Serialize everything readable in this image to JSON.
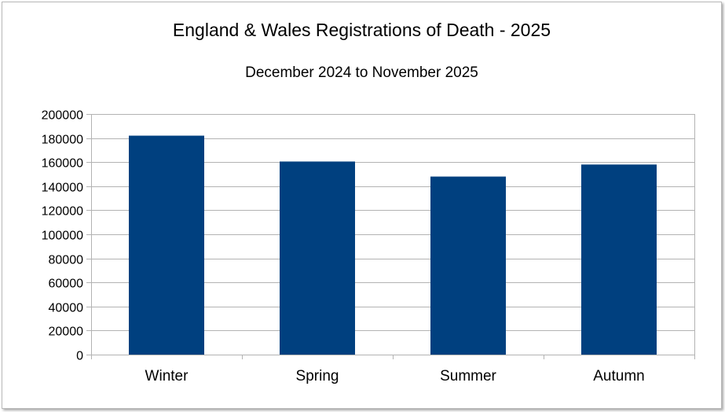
{
  "chart_data": {
    "type": "bar",
    "title": "England & Wales Registrations of Death - 2025",
    "subtitle": "December 2024 to November 2025",
    "categories": [
      "Winter",
      "Spring",
      "Summer",
      "Autumn"
    ],
    "values": [
      182000,
      160500,
      148000,
      158000
    ],
    "ylim": [
      0,
      200000
    ],
    "yticks": [
      0,
      20000,
      40000,
      60000,
      80000,
      100000,
      120000,
      140000,
      160000,
      180000,
      200000
    ],
    "xlabel": "",
    "ylabel": "",
    "grid": true,
    "legend": "none",
    "bar_color": "#00407f",
    "grid_color": "#b3b3b3"
  }
}
